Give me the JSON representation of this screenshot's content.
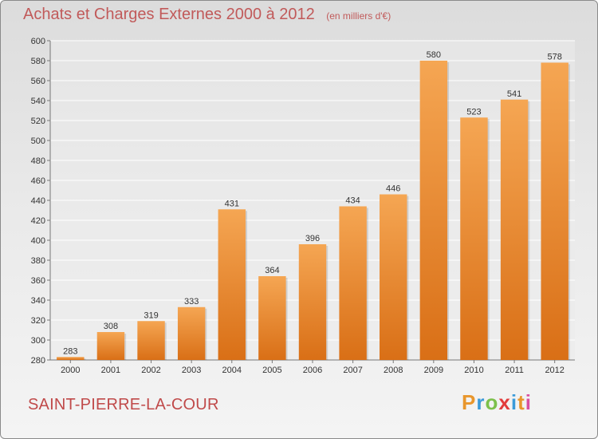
{
  "header": {
    "title": "Achats et Charges Externes 2000 à 2012",
    "subtitle": "(en milliers d'€)"
  },
  "footer": {
    "commune": "SAINT-PIERRE-LA-COUR",
    "brand": "Proxiti",
    "brand_letter_colors": [
      "#e8962c",
      "#3a9ad9",
      "#7cc04b",
      "#e23b3b",
      "#3a9ad9",
      "#e8962c",
      "#d94fa0"
    ]
  },
  "colors": {
    "bar_top": "#f5a653",
    "bar_bottom": "#d96f16",
    "title": "#c15a5a",
    "grid": "#ffffff"
  },
  "chart_data": {
    "type": "bar",
    "title": "Achats et Charges Externes 2000 à 2012",
    "subtitle": "(en milliers d'€)",
    "categories": [
      "2000",
      "2001",
      "2002",
      "2003",
      "2004",
      "2005",
      "2006",
      "2007",
      "2008",
      "2009",
      "2010",
      "2011",
      "2012"
    ],
    "values": [
      283,
      308,
      319,
      333,
      431,
      364,
      396,
      434,
      446,
      580,
      523,
      541,
      578
    ],
    "ylim": [
      280,
      600
    ],
    "ytick_step": 20,
    "grid": true,
    "data_labels": true
  }
}
